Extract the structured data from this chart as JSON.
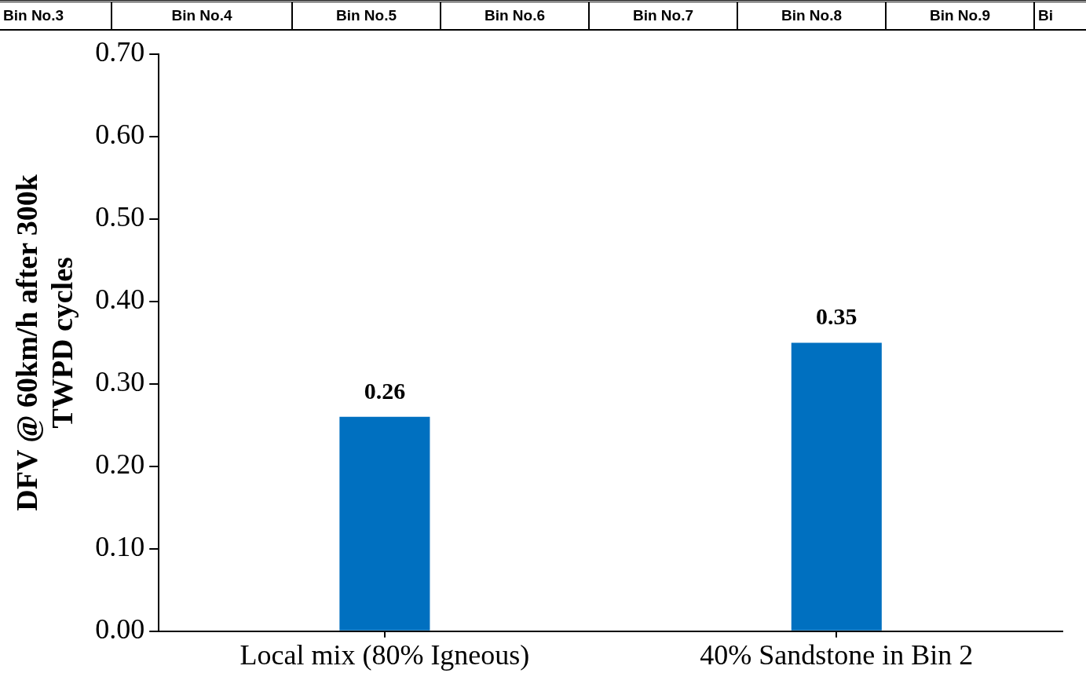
{
  "chart_data": {
    "type": "bar",
    "ylabel": "DFV @ 60km/h after 300k TWPD cycles",
    "categories": [
      "Local mix (80% Igneous)",
      "40% Sandstone in Bin 2"
    ],
    "values": [
      0.26,
      0.35
    ],
    "color": "#0070c0",
    "ylim": [
      0,
      0.7
    ],
    "yticks": [
      {
        "value": 0,
        "label": "0.00"
      },
      {
        "value": 0.1,
        "label": "0.10"
      },
      {
        "value": 0.2,
        "label": "0.20"
      },
      {
        "value": 0.3,
        "label": "0.30"
      },
      {
        "value": 0.4,
        "label": "0.40"
      },
      {
        "value": 0.5,
        "label": "0.50"
      },
      {
        "value": 0.6,
        "label": "0.60"
      },
      {
        "value": 0.7,
        "label": "0.70"
      }
    ],
    "data_labels": true,
    "grid": false,
    "legend": false,
    "annotations": [
      "Bin No.3",
      "Bin No.4",
      "Bin No.5",
      "Bin No.6",
      "Bin No.7",
      "Bin No.8",
      "Bin No.9",
      "Bi"
    ]
  }
}
